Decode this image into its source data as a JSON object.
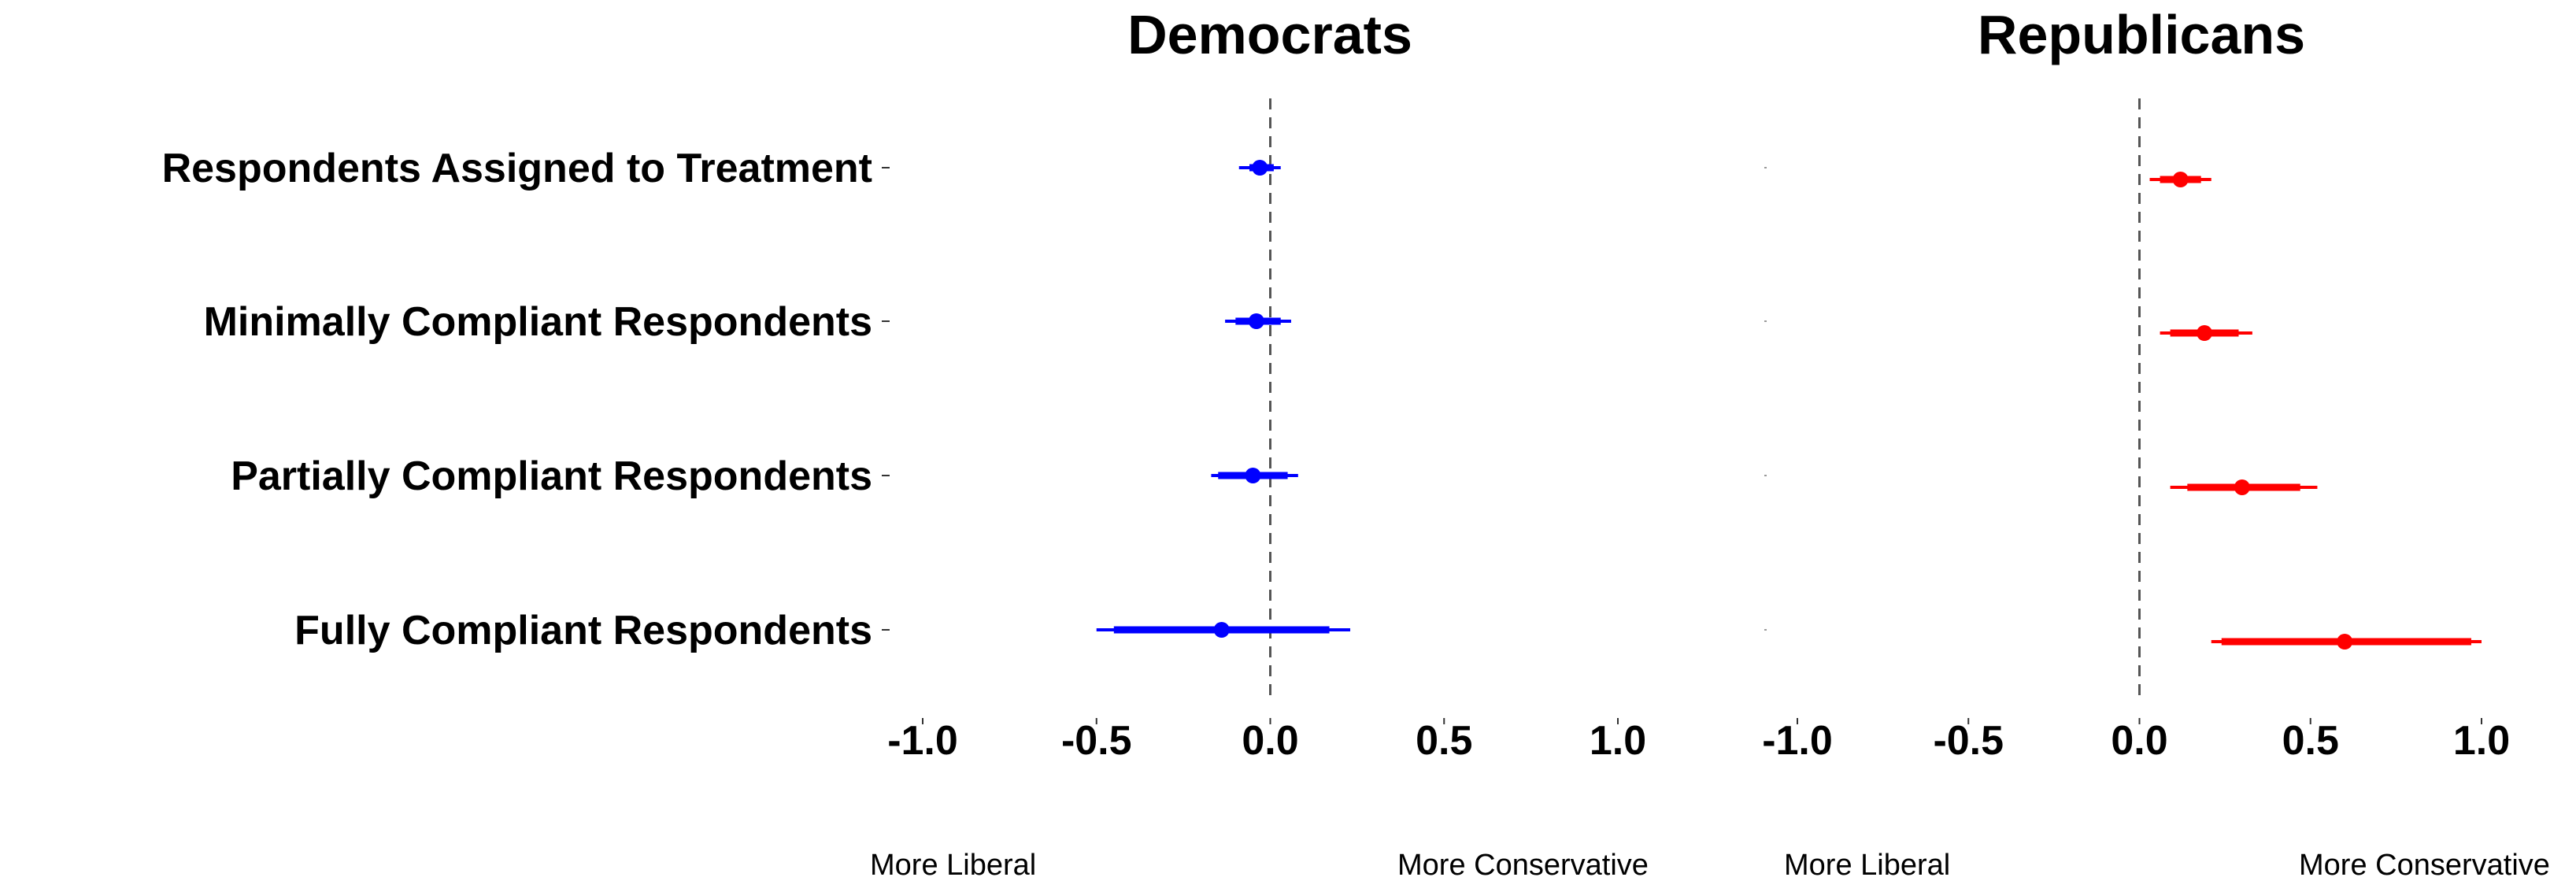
{
  "chart_data": [
    {
      "type": "scatter",
      "title": "Democrats",
      "color": "#0000ff",
      "categories": [
        "Respondents Assigned to Treatment",
        "Minimally Compliant Respondents",
        "Partially Compliant Respondents",
        "Fully Compliant Respondents"
      ],
      "estimates": [
        -0.03,
        -0.04,
        -0.05,
        -0.14
      ],
      "ci_inner": [
        [
          -0.06,
          0.01
        ],
        [
          -0.1,
          0.03
        ],
        [
          -0.15,
          0.05
        ],
        [
          -0.45,
          0.17
        ]
      ],
      "ci_outer": [
        [
          -0.09,
          0.03
        ],
        [
          -0.13,
          0.06
        ],
        [
          -0.17,
          0.08
        ],
        [
          -0.5,
          0.23
        ]
      ],
      "xlim": [
        -1.0,
        1.0
      ],
      "xticks": [
        "-1.0",
        "-0.5",
        "0.0",
        "0.5",
        "1.0"
      ],
      "reference_line": 0.0,
      "direction_labels": [
        "More  Liberal",
        "More Conservative"
      ]
    },
    {
      "type": "scatter",
      "title": "Republicans",
      "color": "#ff0000",
      "categories": [
        "Respondents Assigned to Treatment",
        "Minimally Compliant Respondents",
        "Partially Compliant Respondents",
        "Fully Compliant Respondents"
      ],
      "estimates": [
        0.12,
        0.19,
        0.3,
        0.6
      ],
      "ci_inner": [
        [
          0.06,
          0.18
        ],
        [
          0.09,
          0.29
        ],
        [
          0.14,
          0.47
        ],
        [
          0.24,
          0.97
        ]
      ],
      "ci_outer": [
        [
          0.03,
          0.21
        ],
        [
          0.06,
          0.33
        ],
        [
          0.09,
          0.52
        ],
        [
          0.21,
          1.0
        ]
      ],
      "xlim": [
        -1.0,
        1.0
      ],
      "xticks": [
        "-1.0",
        "-0.5",
        "0.0",
        "0.5",
        "1.0"
      ],
      "reference_line": 0.0,
      "direction_labels": [
        "More  Liberal",
        "More Conservative"
      ]
    }
  ]
}
